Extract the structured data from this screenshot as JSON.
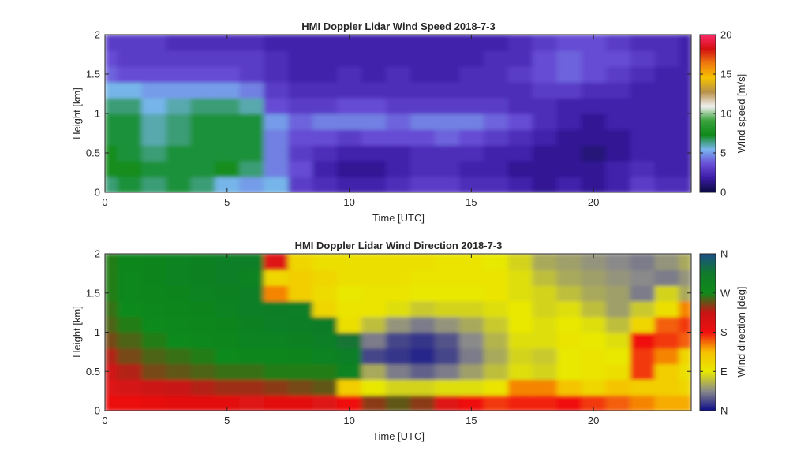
{
  "chart_data": [
    {
      "type": "heatmap",
      "title": "HMI Doppler Lidar Wind Speed  2018-7-3",
      "xlabel": "Time [UTC]",
      "ylabel": "Height [km]",
      "xlim": [
        0,
        24
      ],
      "ylim": [
        0,
        2
      ],
      "xticks": [
        "0",
        "5",
        "10",
        "15",
        "20"
      ],
      "xtick_values": [
        0,
        5,
        10,
        15,
        20
      ],
      "yticks": [
        "0",
        "0.5",
        "1",
        "1.5",
        "2"
      ],
      "ytick_values": [
        0,
        0.5,
        1,
        1.5,
        2
      ],
      "colorbar": {
        "label": "Wind speed [m/s]",
        "range": [
          0,
          20
        ],
        "ticks": [
          "0",
          "5",
          "10",
          "15",
          "20"
        ],
        "tick_values": [
          0,
          5,
          10,
          15,
          20
        ],
        "stops": [
          "#0a0a40",
          "#3b1ba6",
          "#6a4fd8",
          "#79b6ee",
          "#0e8a1a",
          "#3aa23c",
          "#f0f0f0",
          "#b8914a",
          "#f6c200",
          "#f07a10",
          "#d21010",
          "#ff2a6a"
        ]
      },
      "times_utc": [
        0,
        1,
        2,
        3,
        4,
        5,
        6,
        7,
        8,
        9,
        10,
        11,
        12,
        13,
        14,
        15,
        16,
        17,
        18,
        19,
        20,
        21,
        22,
        23,
        24
      ],
      "heights_km": [
        0.1,
        0.3,
        0.5,
        0.7,
        0.9,
        1.1,
        1.3,
        1.5,
        1.7,
        1.9
      ],
      "values_ms": [
        [
          6.5,
          7,
          6.5,
          7,
          6.5,
          5.5,
          5,
          5.5,
          3,
          2.5,
          2,
          2,
          2.5,
          3,
          3,
          2.5,
          2.5,
          2,
          1.5,
          2,
          1.5,
          2,
          3,
          2.5,
          2.5
        ],
        [
          7.5,
          7.5,
          7,
          7,
          7,
          7.5,
          6.5,
          4.5,
          3.5,
          2,
          1.5,
          1.5,
          2,
          2.5,
          2.5,
          2,
          2,
          1.5,
          1.5,
          1.5,
          1.5,
          2,
          2.5,
          2,
          2
        ],
        [
          7.5,
          7,
          6.5,
          7,
          7,
          7,
          7,
          4.5,
          3,
          2.5,
          2,
          2,
          2,
          2.5,
          2.5,
          2.5,
          2,
          2,
          1.5,
          1.5,
          1,
          1.5,
          2,
          2,
          2
        ],
        [
          7,
          7,
          6,
          6.5,
          7,
          7,
          7,
          4.5,
          3.5,
          3.5,
          3,
          3.5,
          3.5,
          3.5,
          4,
          3.5,
          3,
          2.5,
          2,
          1.5,
          1.5,
          1.5,
          2,
          2,
          2
        ],
        [
          7,
          7,
          6,
          6.5,
          7,
          7,
          7,
          5,
          4,
          4.5,
          4.5,
          4.5,
          4,
          4.5,
          4.5,
          4.5,
          4,
          3.5,
          2.5,
          2,
          1.5,
          2,
          2,
          2,
          2
        ],
        [
          6.5,
          6.5,
          5.5,
          6,
          6.5,
          6.5,
          6,
          3.5,
          3,
          3,
          3.5,
          3.5,
          3,
          3,
          3,
          3,
          3,
          2.5,
          2.5,
          2,
          2,
          2,
          2,
          2,
          2
        ],
        [
          5.5,
          5.5,
          5,
          5,
          5,
          5,
          4.5,
          3,
          2.5,
          2.5,
          2.5,
          2.5,
          2.5,
          2.5,
          2.5,
          2.5,
          2.5,
          2.5,
          3,
          3,
          2.5,
          2.5,
          2,
          2,
          2
        ],
        [
          4,
          3.5,
          3.5,
          3.5,
          3.5,
          3.5,
          3,
          2.5,
          2,
          2,
          2.5,
          2,
          2.5,
          2,
          2,
          2.5,
          2.5,
          3,
          3.5,
          4,
          3.5,
          3,
          2.5,
          2,
          2
        ],
        [
          3.5,
          3,
          3,
          3,
          3,
          3,
          3,
          2.5,
          2,
          2,
          2,
          2,
          2,
          2,
          2,
          2,
          2.5,
          2.5,
          3.5,
          4,
          3.5,
          3.5,
          3,
          2.5,
          2
        ],
        [
          3,
          3,
          3,
          2.5,
          2.5,
          2.5,
          2.5,
          2,
          2,
          2,
          2,
          2,
          2,
          2,
          2,
          2,
          2,
          2.5,
          3,
          3.5,
          3.5,
          3,
          2.5,
          2.5,
          2
        ]
      ]
    },
    {
      "type": "heatmap",
      "title": "HMI Doppler Lidar Wind Direction  2018-7-3",
      "xlabel": "Time [UTC]",
      "ylabel": "Height [km]",
      "xlim": [
        0,
        24
      ],
      "ylim": [
        0,
        2
      ],
      "xticks": [
        "0",
        "5",
        "10",
        "15",
        "20"
      ],
      "xtick_values": [
        0,
        5,
        10,
        15,
        20
      ],
      "yticks": [
        "0",
        "0.5",
        "1",
        "1.5",
        "2"
      ],
      "ytick_values": [
        0,
        0.5,
        1,
        1.5,
        2
      ],
      "colorbar": {
        "label": "Wind direction [deg]",
        "range": [
          0,
          360
        ],
        "ticks": [
          "N",
          "E",
          "S",
          "W",
          "N"
        ],
        "tick_values": [
          0,
          90,
          180,
          270,
          360
        ],
        "stops": [
          "#0c0c8a",
          "#8a8a8a",
          "#e8e800",
          "#f7c000",
          "#f01010",
          "#c81414",
          "#0f8a1a",
          "#117a2a",
          "#1a4f8a"
        ]
      },
      "times_utc": [
        0,
        1,
        2,
        3,
        4,
        5,
        6,
        7,
        8,
        9,
        10,
        11,
        12,
        13,
        14,
        15,
        16,
        17,
        18,
        19,
        20,
        21,
        22,
        23,
        24
      ],
      "heights_km": [
        0.1,
        0.3,
        0.5,
        0.7,
        0.9,
        1.1,
        1.3,
        1.5,
        1.7,
        1.9
      ],
      "values_deg": [
        [
          185,
          185,
          190,
          195,
          195,
          195,
          200,
          195,
          195,
          200,
          180,
          240,
          250,
          240,
          200,
          180,
          170,
          175,
          175,
          180,
          170,
          160,
          150,
          140,
          140
        ],
        [
          200,
          210,
          220,
          225,
          230,
          235,
          235,
          240,
          245,
          250,
          120,
          90,
          80,
          80,
          85,
          85,
          95,
          150,
          150,
          130,
          110,
          130,
          120,
          120,
          110
        ],
        [
          215,
          230,
          245,
          250,
          255,
          260,
          260,
          265,
          265,
          265,
          290,
          60,
          40,
          30,
          40,
          55,
          70,
          85,
          80,
          90,
          95,
          100,
          170,
          120,
          100
        ],
        [
          230,
          245,
          255,
          260,
          265,
          270,
          280,
          280,
          285,
          290,
          300,
          20,
          15,
          10,
          20,
          40,
          60,
          80,
          75,
          90,
          95,
          90,
          170,
          150,
          110
        ],
        [
          245,
          255,
          265,
          270,
          275,
          280,
          290,
          290,
          295,
          300,
          320,
          40,
          20,
          15,
          25,
          45,
          65,
          85,
          85,
          95,
          90,
          85,
          180,
          170,
          160
        ],
        [
          255,
          265,
          270,
          275,
          280,
          285,
          295,
          300,
          305,
          310,
          100,
          70,
          50,
          40,
          50,
          60,
          75,
          90,
          85,
          90,
          85,
          70,
          110,
          160,
          170
        ],
        [
          260,
          270,
          275,
          280,
          285,
          290,
          300,
          305,
          300,
          110,
          95,
          95,
          85,
          75,
          80,
          80,
          85,
          90,
          80,
          85,
          70,
          55,
          75,
          100,
          150
        ],
        [
          265,
          275,
          280,
          285,
          290,
          295,
          300,
          150,
          120,
          105,
          90,
          95,
          95,
          90,
          90,
          90,
          95,
          85,
          80,
          70,
          60,
          55,
          40,
          80,
          60
        ],
        [
          265,
          275,
          285,
          290,
          295,
          300,
          290,
          110,
          120,
          110,
          100,
          100,
          100,
          95,
          95,
          95,
          95,
          85,
          70,
          60,
          55,
          50,
          45,
          40,
          50
        ],
        [
          265,
          280,
          285,
          290,
          295,
          300,
          300,
          200,
          110,
          100,
          100,
          100,
          100,
          100,
          95,
          95,
          90,
          80,
          60,
          55,
          50,
          45,
          40,
          50,
          60
        ]
      ]
    }
  ]
}
